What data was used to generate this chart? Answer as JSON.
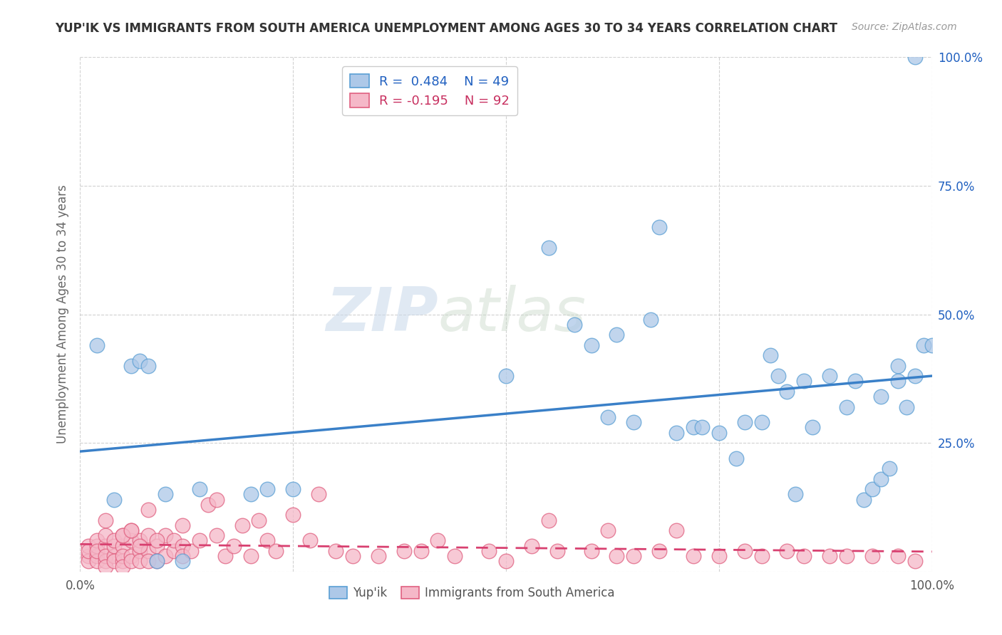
{
  "title": "YUP'IK VS IMMIGRANTS FROM SOUTH AMERICA UNEMPLOYMENT AMONG AGES 30 TO 34 YEARS CORRELATION CHART",
  "source": "Source: ZipAtlas.com",
  "ylabel": "Unemployment Among Ages 30 to 34 years",
  "xlim": [
    0.0,
    1.0
  ],
  "ylim": [
    0.0,
    1.0
  ],
  "R1": 0.484,
  "N1": 49,
  "R2": -0.195,
  "N2": 92,
  "color_blue": "#adc8e8",
  "color_pink": "#f5b8c8",
  "color_blue_edge": "#5a9fd4",
  "color_pink_edge": "#e06080",
  "color_blue_line": "#3a80c8",
  "color_pink_line": "#d84070",
  "color_blue_text": "#2060c0",
  "color_pink_text": "#c83060",
  "background": "#ffffff",
  "grid_color": "#cccccc",
  "watermark_zip": "ZIP",
  "watermark_atlas": "atlas",
  "yup_ik_x": [
    0.02,
    0.04,
    0.06,
    0.07,
    0.08,
    0.09,
    0.1,
    0.12,
    0.14,
    0.2,
    0.22,
    0.25,
    0.5,
    0.55,
    0.58,
    0.6,
    0.62,
    0.65,
    0.68,
    0.7,
    0.72,
    0.75,
    0.78,
    0.8,
    0.82,
    0.84,
    0.85,
    0.86,
    0.88,
    0.9,
    0.92,
    0.93,
    0.94,
    0.95,
    0.96,
    0.97,
    0.98,
    0.99,
    1.0,
    0.63,
    0.67,
    0.73,
    0.77,
    0.81,
    0.83,
    0.91,
    0.94,
    0.96,
    0.98
  ],
  "yup_ik_y": [
    0.44,
    0.14,
    0.4,
    0.41,
    0.4,
    0.02,
    0.15,
    0.02,
    0.16,
    0.15,
    0.16,
    0.16,
    0.38,
    0.63,
    0.48,
    0.44,
    0.3,
    0.29,
    0.67,
    0.27,
    0.28,
    0.27,
    0.29,
    0.29,
    0.38,
    0.15,
    0.37,
    0.28,
    0.38,
    0.32,
    0.14,
    0.16,
    0.18,
    0.2,
    0.37,
    0.32,
    0.38,
    0.44,
    0.44,
    0.46,
    0.49,
    0.28,
    0.22,
    0.42,
    0.35,
    0.37,
    0.34,
    0.4,
    1.0
  ],
  "imm_x": [
    0.01,
    0.01,
    0.01,
    0.01,
    0.02,
    0.02,
    0.02,
    0.02,
    0.02,
    0.03,
    0.03,
    0.03,
    0.03,
    0.03,
    0.04,
    0.04,
    0.04,
    0.04,
    0.05,
    0.05,
    0.05,
    0.05,
    0.05,
    0.06,
    0.06,
    0.06,
    0.06,
    0.07,
    0.07,
    0.07,
    0.08,
    0.08,
    0.08,
    0.09,
    0.09,
    0.1,
    0.1,
    0.11,
    0.11,
    0.12,
    0.12,
    0.13,
    0.14,
    0.15,
    0.16,
    0.17,
    0.18,
    0.19,
    0.2,
    0.22,
    0.23,
    0.25,
    0.27,
    0.3,
    0.32,
    0.35,
    0.38,
    0.4,
    0.42,
    0.44,
    0.48,
    0.5,
    0.53,
    0.56,
    0.6,
    0.63,
    0.65,
    0.68,
    0.72,
    0.75,
    0.78,
    0.8,
    0.83,
    0.85,
    0.88,
    0.9,
    0.93,
    0.96,
    0.98,
    0.03,
    0.05,
    0.06,
    0.07,
    0.08,
    0.09,
    0.12,
    0.16,
    0.21,
    0.28,
    0.55,
    0.62,
    0.7
  ],
  "imm_y": [
    0.03,
    0.05,
    0.02,
    0.04,
    0.03,
    0.05,
    0.02,
    0.06,
    0.04,
    0.02,
    0.05,
    0.03,
    0.07,
    0.01,
    0.03,
    0.05,
    0.02,
    0.06,
    0.02,
    0.05,
    0.03,
    0.07,
    0.01,
    0.03,
    0.06,
    0.02,
    0.08,
    0.04,
    0.06,
    0.02,
    0.04,
    0.07,
    0.02,
    0.05,
    0.02,
    0.07,
    0.03,
    0.04,
    0.06,
    0.05,
    0.03,
    0.04,
    0.06,
    0.13,
    0.07,
    0.03,
    0.05,
    0.09,
    0.03,
    0.06,
    0.04,
    0.11,
    0.06,
    0.04,
    0.03,
    0.03,
    0.04,
    0.04,
    0.06,
    0.03,
    0.04,
    0.02,
    0.05,
    0.04,
    0.04,
    0.03,
    0.03,
    0.04,
    0.03,
    0.03,
    0.04,
    0.03,
    0.04,
    0.03,
    0.03,
    0.03,
    0.03,
    0.03,
    0.02,
    0.1,
    0.07,
    0.08,
    0.05,
    0.12,
    0.06,
    0.09,
    0.14,
    0.1,
    0.15,
    0.1,
    0.08,
    0.08
  ]
}
